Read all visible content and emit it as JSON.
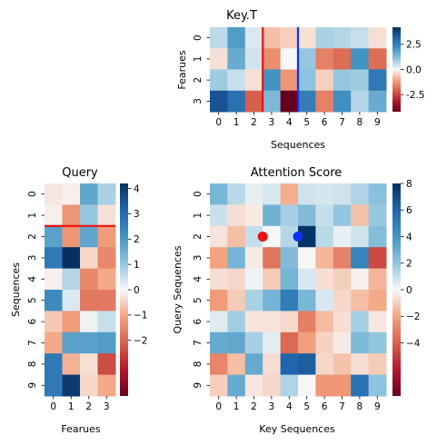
{
  "chart_data": [
    {
      "type": "heatmap",
      "title": "Key.T",
      "xlabel": "Sequences",
      "ylabel": "Fearues",
      "x_ticks": [
        "0",
        "1",
        "2",
        "3",
        "4",
        "5",
        "6",
        "7",
        "8",
        "9"
      ],
      "y_ticks": [
        "0",
        "1",
        "2",
        "3"
      ],
      "colorbar": {
        "ticks": [
          "2.5",
          "0.0",
          "-2.5"
        ],
        "tick_values": [
          2.5,
          0,
          -2.5
        ],
        "vmin": -4.2,
        "vmax": 4.2
      },
      "values": [
        [
          0.6,
          1.9,
          0.3,
          -0.7,
          -0.5,
          -0.3,
          0.8,
          0.7,
          0.5,
          -0.3
        ],
        [
          -0.3,
          1.6,
          0.4,
          -1.4,
          0.0,
          1.0,
          -1.6,
          -1.9,
          2.1,
          -1.9
        ],
        [
          0.9,
          0.5,
          -0.3,
          2.1,
          -1.3,
          1.1,
          -0.5,
          1.0,
          0.9,
          2.7
        ],
        [
          3.5,
          2.9,
          -2.1,
          1.3,
          -4.2,
          2.6,
          -1.6,
          2.2,
          0.7,
          1.6
        ]
      ],
      "markers": [
        {
          "kind": "vline",
          "at_col": 3,
          "color": "#ee1111"
        },
        {
          "kind": "vline",
          "at_col": 5,
          "color": "#1133ee"
        }
      ]
    },
    {
      "type": "heatmap",
      "title": "Query",
      "xlabel": "Fearues",
      "ylabel": "Sequences",
      "x_ticks": [
        "0",
        "1",
        "2",
        "3"
      ],
      "y_ticks": [
        "0",
        "1",
        "2",
        "3",
        "4",
        "5",
        "6",
        "7",
        "8",
        "9"
      ],
      "colorbar": {
        "ticks": [
          "4",
          "3",
          "2",
          "1",
          "0",
          "−1",
          "−2"
        ],
        "tick_values": [
          4,
          3,
          2,
          1,
          0,
          -1,
          -2
        ],
        "vmin": -2.6,
        "vmax": 4.2
      },
      "values": [
        [
          -0.2,
          -0.1,
          1.7,
          0.8
        ],
        [
          -0.1,
          -1.3,
          1.0,
          -0.3
        ],
        [
          1.8,
          -1.3,
          1.7,
          -1.2
        ],
        [
          2.7,
          4.2,
          -0.4,
          -1.5
        ],
        [
          -0.1,
          0.7,
          -1.5,
          -1.0
        ],
        [
          2.3,
          0.3,
          -1.7,
          -1.7
        ],
        [
          -0.6,
          -1.2,
          0.1,
          0.5
        ],
        [
          -1.0,
          1.8,
          1.8,
          1.9
        ],
        [
          2.7,
          -0.9,
          -0.3,
          -2.4
        ],
        [
          2.7,
          4.0,
          -0.4,
          -1.0
        ]
      ],
      "markers": [
        {
          "kind": "hline",
          "at_row": 2,
          "color": "#ee1111"
        }
      ]
    },
    {
      "type": "heatmap",
      "title": "Attention Score",
      "xlabel": "Key Sequences",
      "ylabel": "Query Sequences",
      "x_ticks": [
        "0",
        "1",
        "2",
        "3",
        "4",
        "5",
        "6",
        "7",
        "8",
        "9"
      ],
      "y_ticks": [
        "0",
        "1",
        "2",
        "3",
        "4",
        "5",
        "6",
        "7",
        "8",
        "9"
      ],
      "colorbar": {
        "ticks": [
          "8",
          "6",
          "4",
          "2",
          "0",
          "−2",
          "−4"
        ],
        "tick_values": [
          8,
          6,
          4,
          2,
          0,
          -2,
          -4
        ],
        "vmin": -5.4,
        "vmax": 8.0
      },
      "values": [
        [
          2.6,
          1.2,
          0.3,
          0.6,
          -1.8,
          0.8,
          0.7,
          0.8,
          1.4,
          2.2
        ],
        [
          0.9,
          -0.6,
          -0.3,
          2.8,
          1.6,
          2.4,
          1.0,
          2.0,
          -1.3,
          1.9
        ],
        [
          -0.5,
          -1.4,
          1.0,
          0.0,
          1.3,
          7.9,
          1.2,
          0.3,
          0.8,
          2.3
        ],
        [
          -2.1,
          2.7,
          -0.3,
          -3.4,
          2.4,
          0.0,
          -1.6,
          -3.0,
          4.7,
          -4.6
        ],
        [
          -0.6,
          -0.8,
          0.2,
          -1.1,
          2.7,
          0.6,
          -0.6,
          -1.0,
          -0.2,
          -1.6
        ],
        [
          -2.3,
          -1.1,
          1.5,
          2.7,
          5.0,
          2.6,
          0.6,
          -0.8,
          -1.4,
          -1.9
        ],
        [
          0.5,
          1.7,
          -0.5,
          -0.5,
          -0.7,
          -3.1,
          -1.5,
          -0.6,
          1.6,
          -0.4
        ],
        [
          3.1,
          3.2,
          1.6,
          0.4,
          -3.7,
          -2.2,
          -0.9,
          -0.3,
          2.5,
          2.0
        ],
        [
          -2.9,
          -1.4,
          3.1,
          -0.6,
          6.0,
          6.3,
          -0.8,
          -1.3,
          -0.6,
          -1.1
        ],
        [
          -1.0,
          3.1,
          -0.4,
          -0.8,
          1.4,
          0.0,
          -2.4,
          -2.4,
          5.5,
          2.1
        ]
      ],
      "markers": [
        {
          "kind": "dot",
          "row": 2,
          "col": 3,
          "color": "#ee1111"
        },
        {
          "kind": "dot",
          "row": 2,
          "col": 5,
          "color": "#1133ee"
        }
      ]
    }
  ]
}
